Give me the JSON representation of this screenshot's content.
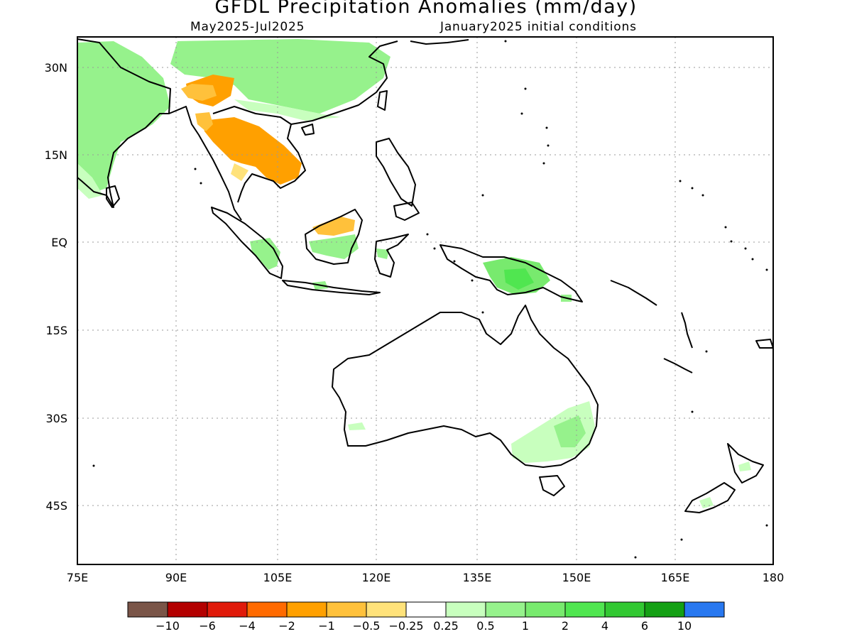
{
  "title": "GFDL Precipitation Anomalies (mm/day)",
  "subtitle_left": "May2025-Jul2025",
  "subtitle_right": "January2025 initial conditions",
  "lat_labels": [
    "30N",
    "15N",
    "EQ",
    "15S",
    "30S",
    "45S"
  ],
  "lon_labels": [
    "75E",
    "90E",
    "105E",
    "120E",
    "135E",
    "150E",
    "165E",
    "180"
  ],
  "colorbar": {
    "colors": [
      "#7a5548",
      "#b30000",
      "#e01a0a",
      "#ff6a00",
      "#ffa000",
      "#ffc13b",
      "#ffe27a",
      "#ffffff",
      "#c8ffbe",
      "#96f28c",
      "#78ea6e",
      "#50e650",
      "#32c832",
      "#14a014",
      "#2878f0"
    ],
    "labels": [
      "−10",
      "−6",
      "−4",
      "−2",
      "−1",
      "−0.5",
      "−0.25",
      "0.25",
      "0.5",
      "1",
      "2",
      "4",
      "6",
      "10"
    ]
  }
}
